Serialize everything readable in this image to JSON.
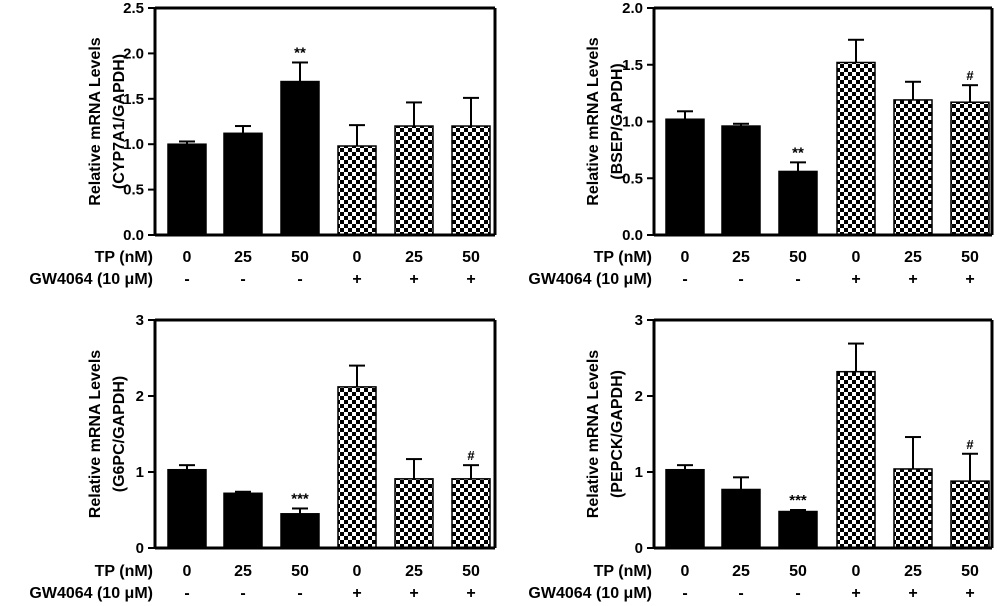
{
  "x_row_labels": {
    "tp": "TP (nM)",
    "gw": "GW4064 (10 μM)"
  },
  "chart_data": [
    {
      "type": "bar",
      "ylabel_line1": "Relative mRNA Levels",
      "ylabel_line2": "(CYP7A1/GAPDH)",
      "ylim": [
        0,
        2.5
      ],
      "yticks": [
        "0.0",
        "0.5",
        "1.0",
        "1.5",
        "2.0",
        "2.5"
      ],
      "tp": [
        "0",
        "25",
        "50",
        "0",
        "25",
        "50"
      ],
      "gw": [
        "-",
        "-",
        "-",
        "+",
        "+",
        "+"
      ],
      "values": [
        1.0,
        1.12,
        1.69,
        0.98,
        1.2,
        1.2
      ],
      "errors": [
        0.03,
        0.08,
        0.21,
        0.23,
        0.26,
        0.31
      ],
      "significance": [
        "",
        "",
        "**",
        "",
        "",
        ""
      ]
    },
    {
      "type": "bar",
      "ylabel_line1": "Relative mRNA Levels",
      "ylabel_line2": "(BSEP/GAPDH)",
      "ylim": [
        0,
        2.0
      ],
      "yticks": [
        "0.0",
        "0.5",
        "1.0",
        "1.5",
        "2.0"
      ],
      "tp": [
        "0",
        "25",
        "50",
        "0",
        "25",
        "50"
      ],
      "gw": [
        "-",
        "-",
        "-",
        "+",
        "+",
        "+"
      ],
      "values": [
        1.02,
        0.96,
        0.56,
        1.52,
        1.19,
        1.17
      ],
      "errors": [
        0.07,
        0.02,
        0.08,
        0.2,
        0.16,
        0.15
      ],
      "significance": [
        "",
        "",
        "**",
        "",
        "",
        "#"
      ]
    },
    {
      "type": "bar",
      "ylabel_line1": "Relative mRNA Levels",
      "ylabel_line2": "(G6PC/GAPDH)",
      "ylim": [
        0,
        3
      ],
      "yticks": [
        "0",
        "1",
        "2",
        "3"
      ],
      "tp": [
        "0",
        "25",
        "50",
        "0",
        "25",
        "50"
      ],
      "gw": [
        "-",
        "-",
        "-",
        "+",
        "+",
        "+"
      ],
      "values": [
        1.03,
        0.72,
        0.45,
        2.12,
        0.91,
        0.91
      ],
      "errors": [
        0.06,
        0.02,
        0.07,
        0.28,
        0.26,
        0.18
      ],
      "significance": [
        "",
        "",
        "***",
        "",
        "",
        "#"
      ]
    },
    {
      "type": "bar",
      "ylabel_line1": "Relative mRNA Levels",
      "ylabel_line2": "(PEPCK/GAPDH)",
      "ylim": [
        0,
        3
      ],
      "yticks": [
        "0",
        "1",
        "2",
        "3"
      ],
      "tp": [
        "0",
        "25",
        "50",
        "0",
        "25",
        "50"
      ],
      "gw": [
        "-",
        "-",
        "-",
        "+",
        "+",
        "+"
      ],
      "values": [
        1.03,
        0.77,
        0.48,
        2.32,
        1.04,
        0.88
      ],
      "errors": [
        0.06,
        0.16,
        0.02,
        0.37,
        0.42,
        0.36
      ],
      "significance": [
        "",
        "",
        "***",
        "",
        "",
        "#"
      ]
    }
  ]
}
